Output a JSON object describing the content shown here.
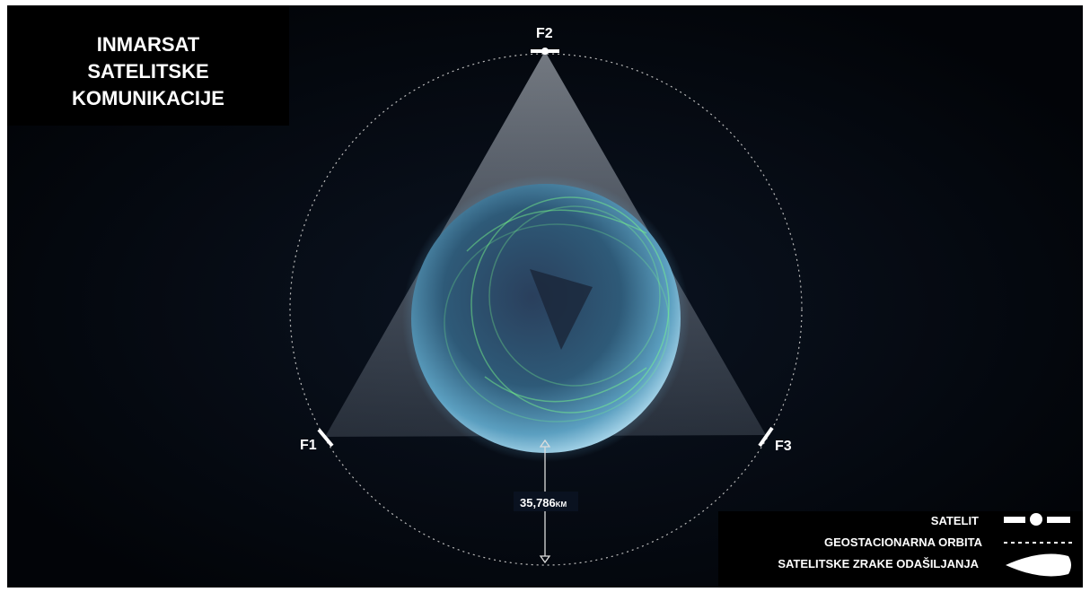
{
  "header": {
    "title_lines": [
      "INMARSAT",
      "SATELITSKE",
      "KOMUNIKACIJE"
    ]
  },
  "satellites": [
    {
      "label": "F1"
    },
    {
      "label": "F2"
    },
    {
      "label": "F3"
    }
  ],
  "distance": {
    "number": "35,786",
    "unit": "KM"
  },
  "legend": {
    "items": [
      {
        "label": "SATELIT"
      },
      {
        "label": "GEOSTACIONARNA ORBITA"
      },
      {
        "label": "SATELITSKE ZRAKE ODAŠILJANJA"
      }
    ]
  }
}
